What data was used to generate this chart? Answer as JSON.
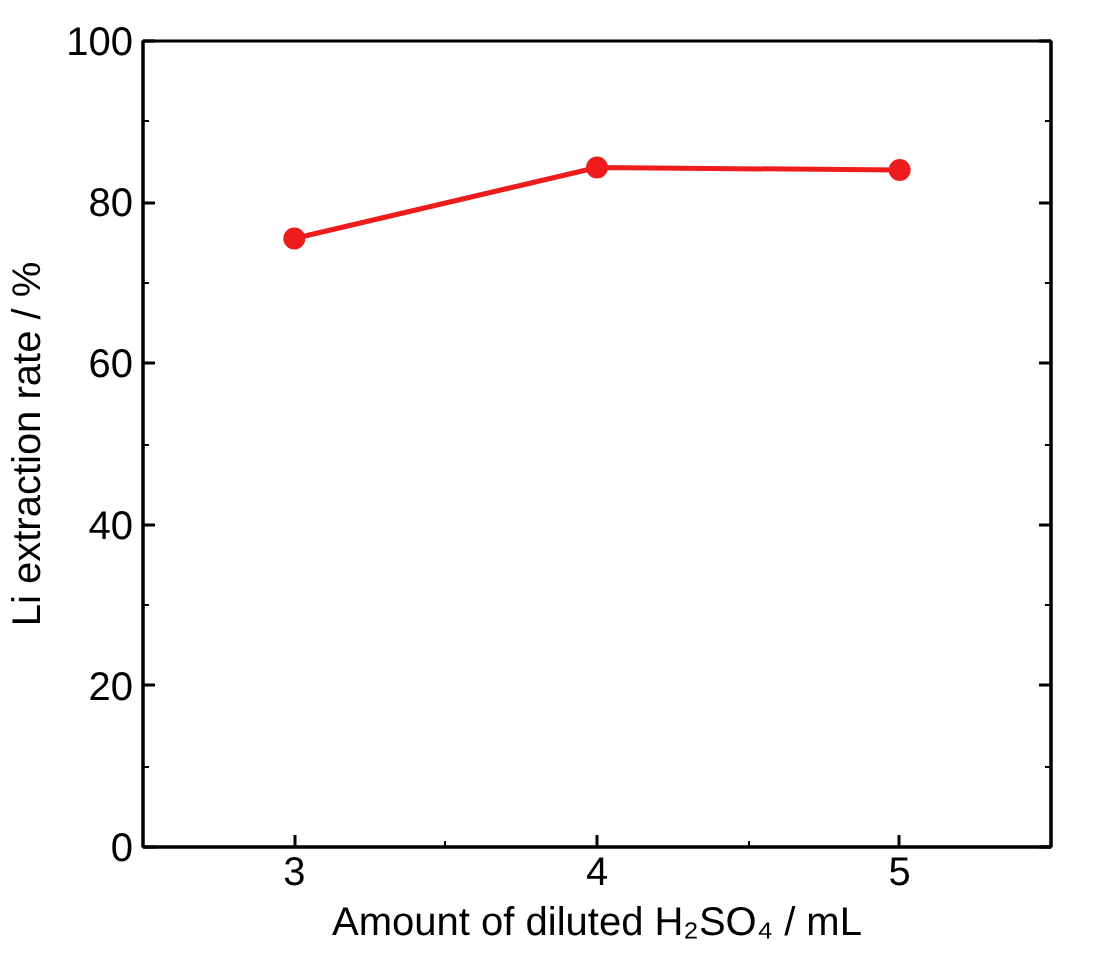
{
  "chart_data": {
    "type": "line",
    "xlabel": "Amount of diluted H₂SO₄ / mL",
    "ylabel": "Li extraction rate / %",
    "x": [
      3,
      4,
      5
    ],
    "series": [
      {
        "color": "#ee1c1c",
        "values": [
          75.5,
          84.3,
          84.0
        ]
      }
    ],
    "xlim": [
      2.5,
      5.5
    ],
    "xticks": [
      3,
      4,
      5
    ],
    "ylim": [
      0,
      100
    ],
    "yticks": [
      0,
      20,
      40,
      60,
      80,
      100
    ],
    "marker": "circle",
    "line_style": "solid",
    "grid": false
  }
}
